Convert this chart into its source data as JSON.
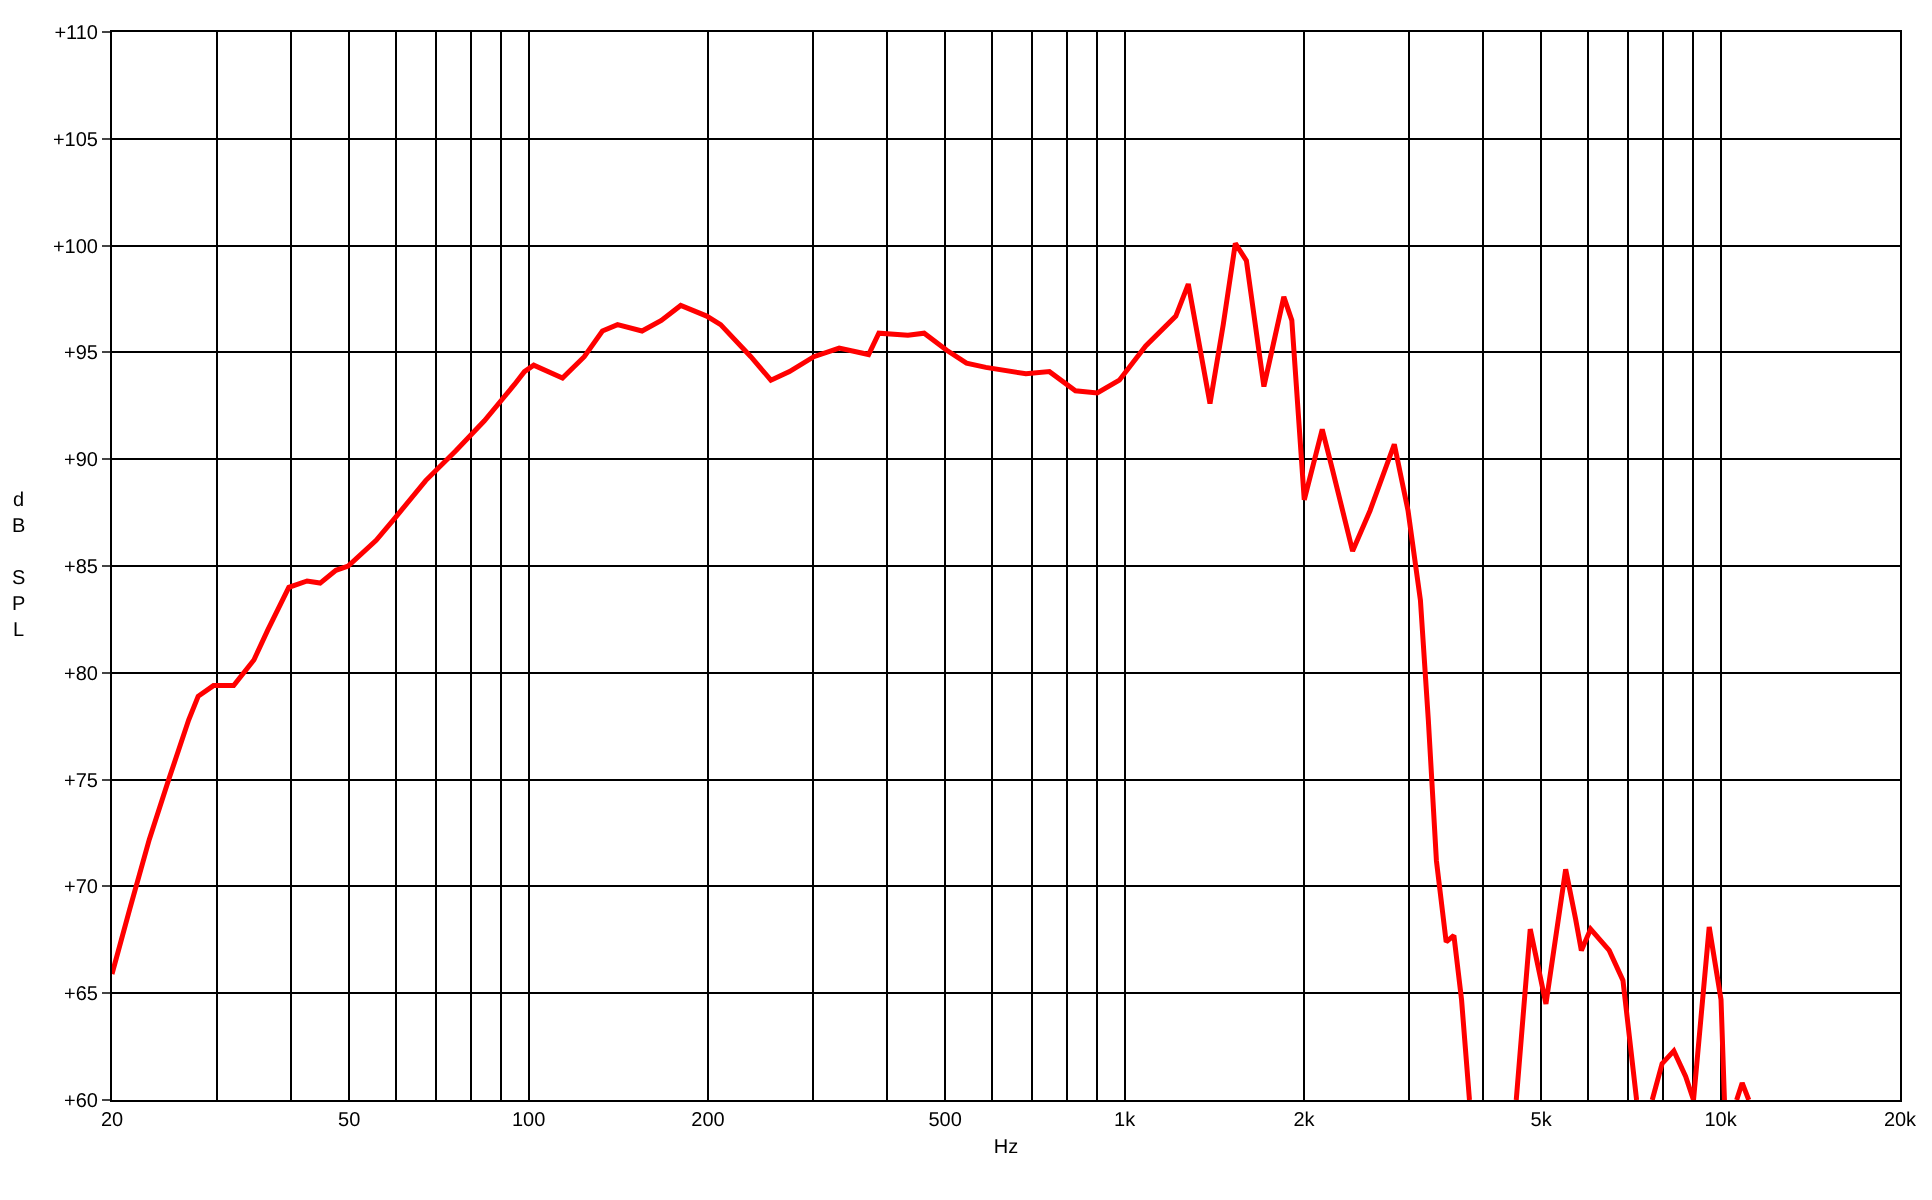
{
  "chart_data": {
    "type": "line",
    "xlabel": "Hz",
    "ylabel": "dB SPL",
    "log": "x",
    "grid": true,
    "marker": "none",
    "line_style": "solid",
    "xlim": [
      20,
      20000
    ],
    "ylim": [
      60,
      110
    ],
    "xticks": [
      20,
      {
        "value": 30,
        "label": null
      },
      {
        "value": 40,
        "label": null
      },
      50,
      {
        "value": 60,
        "label": null
      },
      {
        "value": 70,
        "label": null
      },
      {
        "value": 80,
        "label": null
      },
      {
        "value": 90,
        "label": null
      },
      100,
      200,
      {
        "value": 300,
        "label": null
      },
      {
        "value": 400,
        "label": null
      },
      500,
      {
        "value": 600,
        "label": null
      },
      {
        "value": 700,
        "label": null
      },
      {
        "value": 800,
        "label": null
      },
      {
        "value": 900,
        "label": null
      },
      {
        "value": 1000,
        "label": "1k"
      },
      {
        "value": 2000,
        "label": "2k"
      },
      {
        "value": 3000,
        "label": null
      },
      {
        "value": 4000,
        "label": null
      },
      {
        "value": 5000,
        "label": "5k"
      },
      {
        "value": 6000,
        "label": null
      },
      {
        "value": 7000,
        "label": null
      },
      {
        "value": 8000,
        "label": null
      },
      {
        "value": 9000,
        "label": null
      },
      {
        "value": 10000,
        "label": "10k"
      },
      {
        "value": 20000,
        "label": "20k"
      }
    ],
    "yticks": [
      {
        "value": 60,
        "label": "+60"
      },
      {
        "value": 65,
        "label": "+65"
      },
      {
        "value": 70,
        "label": "+70"
      },
      {
        "value": 75,
        "label": "+75"
      },
      {
        "value": 80,
        "label": "+80"
      },
      {
        "value": 85,
        "label": "+85"
      },
      {
        "value": 90,
        "label": "+90"
      },
      {
        "value": 95,
        "label": "+95"
      },
      {
        "value": 100,
        "label": "+100"
      },
      {
        "value": 105,
        "label": "+105"
      },
      {
        "value": 110,
        "label": "+110"
      }
    ],
    "series": [
      {
        "color": "#ff0000",
        "x": [
          20,
          21.4,
          23.1,
          24.9,
          26.9,
          27.9,
          29.6,
          32,
          34.6,
          36.5,
          39.6,
          42.5,
          44.7,
          47.5,
          49.8,
          55.5,
          59.9,
          67.2,
          75.5,
          84.3,
          94.7,
          98.4,
          102,
          114,
          124,
          133,
          141,
          155,
          167,
          180,
          199,
          210,
          236,
          255,
          274,
          301,
          332,
          372,
          387,
          433,
          461,
          503,
          543,
          585,
          683,
          748,
          827,
          900,
          980,
          1085,
          1219,
          1279,
          1391,
          1464,
          1534,
          1601,
          1713,
          1850,
          1908,
          2002,
          2146,
          2233,
          2413,
          2582,
          2835,
          2989,
          3136,
          3233,
          3336,
          3464,
          3569,
          3676,
          3790,
          4100,
          4541,
          4793,
          5093,
          5496,
          5709,
          5840,
          6053,
          6503,
          6858,
          7229,
          7450,
          7679,
          7977,
          8348,
          8737,
          9007,
          9570,
          10017,
          10150,
          10400,
          10640,
          10870,
          11150
        ],
        "values": [
          65.9,
          68.9,
          72.2,
          75.0,
          77.8,
          78.9,
          79.4,
          79.4,
          80.6,
          82.0,
          84.0,
          84.3,
          84.2,
          84.8,
          85.0,
          86.2,
          87.3,
          89.0,
          90.4,
          91.8,
          93.5,
          94.1,
          94.4,
          93.8,
          94.8,
          96.0,
          96.3,
          96.0,
          96.5,
          97.2,
          96.7,
          96.3,
          94.8,
          93.7,
          94.1,
          94.8,
          95.2,
          94.9,
          95.9,
          95.8,
          95.9,
          95.1,
          94.5,
          94.3,
          94.0,
          94.1,
          93.2,
          93.1,
          93.7,
          95.3,
          96.7,
          98.2,
          92.6,
          96.3,
          100.1,
          99.3,
          93.4,
          97.6,
          96.5,
          88.1,
          91.4,
          89.5,
          85.7,
          87.6,
          90.7,
          87.6,
          83.4,
          77.8,
          71.2,
          67.4,
          67.7,
          64.7,
          60,
          null,
          60,
          68.0,
          64.5,
          70.8,
          68.5,
          67.0,
          68.0,
          67.0,
          65.6,
          60,
          null,
          60,
          61.7,
          62.3,
          61.1,
          60,
          68.1,
          64.7,
          60,
          null,
          60,
          60.8,
          60
        ]
      }
    ]
  }
}
